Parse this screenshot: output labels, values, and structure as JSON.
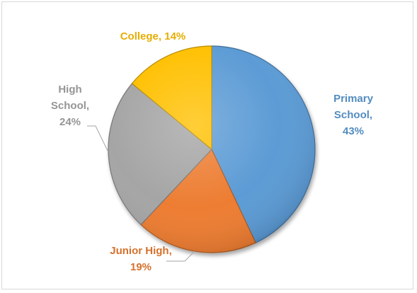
{
  "chart_data": {
    "type": "pie",
    "title": "",
    "slices": [
      {
        "category": "Primary School",
        "value": 43,
        "label_lines": [
          "Primary",
          "School,",
          "43%"
        ],
        "color": "#5b9bd5"
      },
      {
        "category": "Junior High",
        "value": 19,
        "label_lines": [
          "Junior High,",
          "19%"
        ],
        "color": "#ed7d31"
      },
      {
        "category": "High School",
        "value": 24,
        "label_lines": [
          "High",
          "School,",
          "24%"
        ],
        "color": "#a5a5a5"
      },
      {
        "category": "College",
        "value": 14,
        "label_lines": [
          "College, 14%"
        ],
        "color": "#ffc000"
      }
    ],
    "legend": "none",
    "style": "3d-bevel"
  }
}
